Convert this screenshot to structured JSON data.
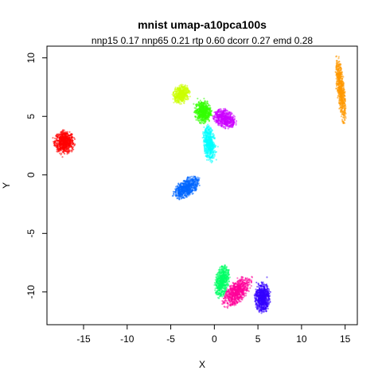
{
  "chart_data": {
    "type": "scatter",
    "title": "mnist umap-a10pca100s",
    "subtitle": "nnp15 0.17 nnp65 0.21 rtp 0.60 dcorr 0.27 emd 0.28",
    "xlabel": "X",
    "ylabel": "Y",
    "xlim": [
      -19.2,
      16.4
    ],
    "ylim": [
      -12.8,
      11.0
    ],
    "x_ticks": [
      -15,
      -10,
      -5,
      0,
      5,
      10,
      15
    ],
    "y_ticks": [
      -10,
      -5,
      0,
      5,
      10
    ],
    "grid": false,
    "legend": "none",
    "clusters": [
      {
        "color": "#ff0000",
        "cx": -17.2,
        "cy": 2.8,
        "rx": 1.2,
        "ry": 1.0,
        "angle": 0,
        "n": 700
      },
      {
        "color": "#ff9900",
        "cx": 14.5,
        "cy": 7.3,
        "rx": 0.45,
        "ry": 2.9,
        "angle": 8,
        "n": 650
      },
      {
        "color": "#ccff00",
        "cx": -3.8,
        "cy": 6.9,
        "rx": 1.0,
        "ry": 0.8,
        "angle": 20,
        "n": 450
      },
      {
        "color": "#33ff00",
        "cx": -1.3,
        "cy": 5.4,
        "rx": 1.0,
        "ry": 1.0,
        "angle": 0,
        "n": 550
      },
      {
        "color": "#cc00ff",
        "cx": 1.2,
        "cy": 4.8,
        "rx": 1.4,
        "ry": 0.8,
        "angle": -15,
        "n": 550
      },
      {
        "color": "#00ffff",
        "cx": -0.6,
        "cy": 2.7,
        "rx": 0.7,
        "ry": 1.6,
        "angle": 10,
        "n": 550
      },
      {
        "color": "#0066ff",
        "cx": -3.2,
        "cy": -1.1,
        "rx": 1.7,
        "ry": 0.75,
        "angle": 25,
        "n": 650
      },
      {
        "color": "#00ff66",
        "cx": 0.9,
        "cy": -9.1,
        "rx": 0.8,
        "ry": 1.4,
        "angle": -15,
        "n": 600
      },
      {
        "color": "#ff0099",
        "cx": 2.6,
        "cy": -10.0,
        "rx": 1.9,
        "ry": 0.9,
        "angle": 35,
        "n": 700
      },
      {
        "color": "#3300ff",
        "cx": 5.5,
        "cy": -10.5,
        "rx": 0.9,
        "ry": 1.3,
        "angle": 0,
        "n": 700
      }
    ]
  }
}
